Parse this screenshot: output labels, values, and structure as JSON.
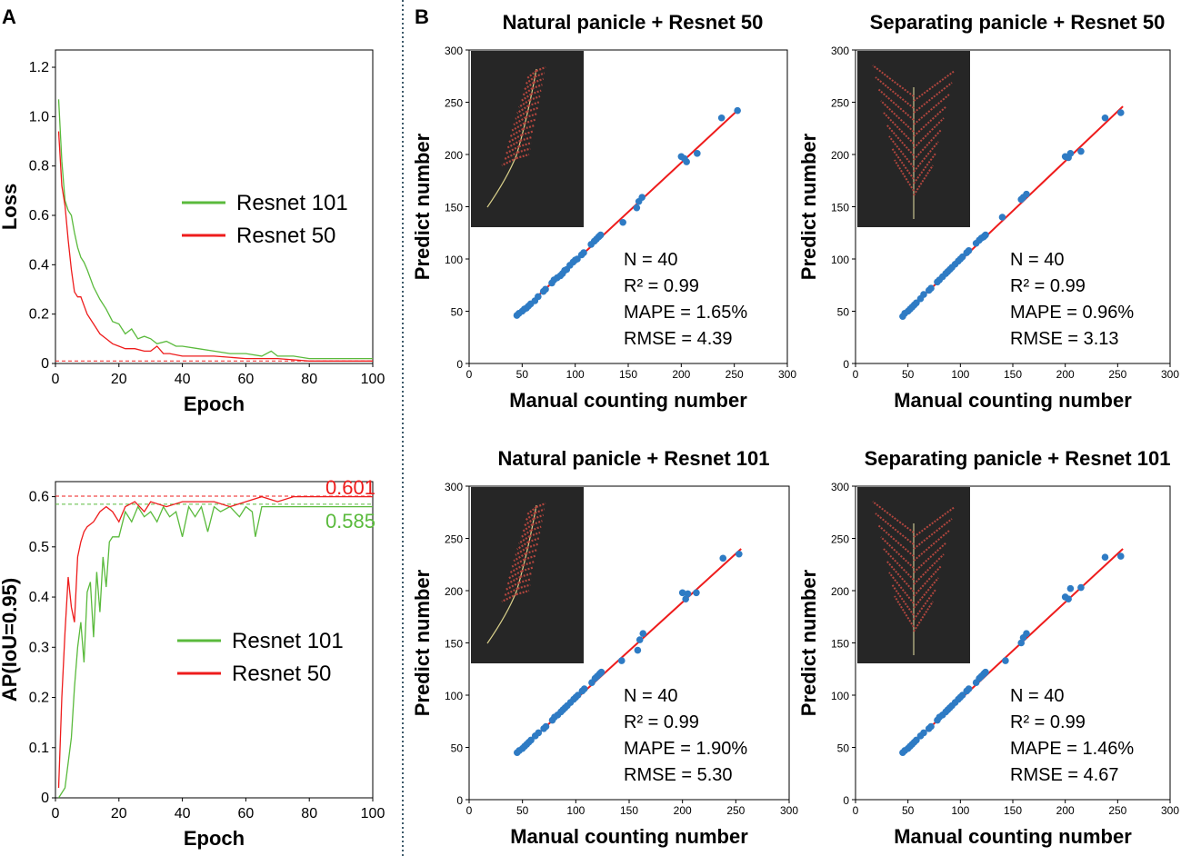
{
  "panels": {
    "A": "A",
    "B": "B"
  },
  "chart_data": [
    {
      "id": "loss",
      "type": "line",
      "title": "",
      "xlabel": "Epoch",
      "ylabel": "Loss",
      "xlim": [
        0,
        100
      ],
      "ylim": [
        0,
        1.27
      ],
      "xticks": [
        0,
        20,
        40,
        60,
        80,
        100
      ],
      "yticks": [
        0,
        0.2,
        0.4,
        0.6,
        0.8,
        1.0,
        1.2
      ],
      "ytick_labels": [
        "0",
        "0.2",
        "0.4",
        "0.6",
        "0.8",
        "1.0",
        "1.2"
      ],
      "legend": {
        "placement": "center-right",
        "entries": [
          {
            "name": "Resnet 101",
            "color": "#5aba3c"
          },
          {
            "name": "Resnet 50",
            "color": "#ee1c1c"
          }
        ]
      },
      "reference_lines": [
        {
          "y": 0.01,
          "color": "#ee1c1c",
          "style": "dashed"
        }
      ],
      "series": [
        {
          "name": "Resnet 101",
          "color": "#5aba3c",
          "x": [
            1,
            2,
            3,
            4,
            5,
            6,
            7,
            8,
            9,
            10,
            12,
            14,
            16,
            18,
            20,
            22,
            24,
            26,
            28,
            30,
            32,
            35,
            38,
            40,
            45,
            50,
            55,
            60,
            65,
            68,
            70,
            75,
            80,
            85,
            90,
            95,
            100
          ],
          "y": [
            1.07,
            0.82,
            0.66,
            0.62,
            0.6,
            0.53,
            0.47,
            0.43,
            0.41,
            0.38,
            0.31,
            0.26,
            0.22,
            0.17,
            0.16,
            0.12,
            0.14,
            0.1,
            0.11,
            0.1,
            0.08,
            0.09,
            0.07,
            0.07,
            0.06,
            0.05,
            0.04,
            0.04,
            0.03,
            0.05,
            0.03,
            0.03,
            0.02,
            0.02,
            0.02,
            0.02,
            0.02
          ]
        },
        {
          "name": "Resnet 50",
          "color": "#ee1c1c",
          "x": [
            1,
            2,
            3,
            4,
            5,
            6,
            7,
            8,
            10,
            12,
            14,
            16,
            18,
            20,
            22,
            25,
            28,
            30,
            32,
            34,
            36,
            40,
            45,
            50,
            60,
            70,
            80,
            90,
            100
          ],
          "y": [
            0.94,
            0.72,
            0.64,
            0.5,
            0.38,
            0.29,
            0.27,
            0.27,
            0.2,
            0.16,
            0.12,
            0.1,
            0.08,
            0.07,
            0.06,
            0.06,
            0.05,
            0.05,
            0.07,
            0.04,
            0.04,
            0.03,
            0.03,
            0.03,
            0.02,
            0.02,
            0.01,
            0.01,
            0.01
          ]
        }
      ]
    },
    {
      "id": "ap",
      "type": "line",
      "title": "",
      "xlabel": "Epoch",
      "ylabel": "AP(IoU=0.95)",
      "xlim": [
        0,
        100
      ],
      "ylim": [
        0,
        0.63
      ],
      "xticks": [
        0,
        20,
        40,
        60,
        80,
        100
      ],
      "yticks": [
        0,
        0.1,
        0.2,
        0.3,
        0.4,
        0.5,
        0.6
      ],
      "ytick_labels": [
        "0",
        "0.1",
        "0.2",
        "0.3",
        "0.4",
        "0.5",
        "0.6"
      ],
      "legend": {
        "placement": "lower-right",
        "entries": [
          {
            "name": "Resnet 101",
            "color": "#5aba3c"
          },
          {
            "name": "Resnet 50",
            "color": "#ee1c1c"
          }
        ]
      },
      "reference_lines": [
        {
          "y": 0.601,
          "color": "#ee1c1c",
          "style": "dashed",
          "label": "0.601"
        },
        {
          "y": 0.585,
          "color": "#5aba3c",
          "style": "dashed",
          "label": "0.585"
        }
      ],
      "series": [
        {
          "name": "Resnet 101",
          "color": "#5aba3c",
          "x": [
            1,
            3,
            5,
            6,
            7,
            8,
            9,
            10,
            11,
            12,
            13,
            14,
            15,
            16,
            17,
            18,
            20,
            22,
            24,
            26,
            28,
            30,
            32,
            34,
            36,
            38,
            40,
            42,
            44,
            46,
            48,
            50,
            52,
            55,
            58,
            60,
            62,
            63,
            65,
            70,
            75,
            80,
            85,
            90,
            95,
            100
          ],
          "y": [
            0.0,
            0.02,
            0.12,
            0.22,
            0.3,
            0.35,
            0.27,
            0.41,
            0.43,
            0.32,
            0.45,
            0.37,
            0.48,
            0.42,
            0.51,
            0.52,
            0.52,
            0.57,
            0.55,
            0.58,
            0.56,
            0.57,
            0.55,
            0.58,
            0.56,
            0.57,
            0.52,
            0.58,
            0.56,
            0.58,
            0.53,
            0.58,
            0.57,
            0.58,
            0.56,
            0.58,
            0.57,
            0.52,
            0.58,
            0.58,
            0.58,
            0.58,
            0.58,
            0.58,
            0.58,
            0.58
          ]
        },
        {
          "name": "Resnet 50",
          "color": "#ee1c1c",
          "x": [
            1,
            2,
            3,
            4,
            5,
            6,
            7,
            8,
            9,
            10,
            12,
            14,
            16,
            18,
            20,
            22,
            25,
            28,
            30,
            35,
            40,
            45,
            50,
            55,
            60,
            65,
            70,
            75,
            80,
            85,
            90,
            95,
            100
          ],
          "y": [
            0.02,
            0.2,
            0.33,
            0.44,
            0.38,
            0.35,
            0.48,
            0.51,
            0.53,
            0.54,
            0.55,
            0.57,
            0.58,
            0.57,
            0.55,
            0.58,
            0.59,
            0.57,
            0.59,
            0.58,
            0.59,
            0.59,
            0.59,
            0.58,
            0.59,
            0.6,
            0.59,
            0.6,
            0.6,
            0.6,
            0.6,
            0.6,
            0.6
          ]
        }
      ]
    },
    {
      "id": "scatter-natural-50",
      "type": "scatter",
      "title": "Natural panicle + Resnet 50",
      "xlabel": "Manual counting number",
      "ylabel": "Predict number",
      "xlim": [
        0,
        300
      ],
      "ylim": [
        0,
        300
      ],
      "xticks": [
        0,
        50,
        100,
        150,
        200,
        250,
        300
      ],
      "yticks": [
        0,
        50,
        100,
        150,
        200,
        250,
        300
      ],
      "inset_image": "natural panicle photo",
      "stats": {
        "n": "N = 40",
        "r2": "R² = 0.99",
        "mape": "MAPE = 1.65%",
        "rmse": "RMSE = 4.39"
      },
      "fit_line": {
        "x": [
          45,
          255
        ],
        "y": [
          46,
          244
        ],
        "color": "#ee1c1c"
      },
      "points": {
        "x": [
          45,
          47,
          50,
          52,
          54,
          56,
          58,
          62,
          65,
          70,
          72,
          78,
          80,
          83,
          86,
          88,
          90,
          92,
          95,
          98,
          100,
          102,
          106,
          108,
          115,
          118,
          120,
          122,
          123,
          124,
          145,
          158,
          160,
          163,
          200,
          203,
          205,
          215,
          238,
          253
        ],
        "y": [
          46,
          48,
          50,
          52,
          53,
          55,
          57,
          60,
          64,
          69,
          71,
          77,
          80,
          82,
          84,
          86,
          89,
          90,
          94,
          97,
          99,
          100,
          104,
          106,
          114,
          117,
          119,
          121,
          122,
          123,
          135,
          149,
          155,
          159,
          198,
          196,
          193,
          201,
          235,
          242
        ]
      },
      "marker_color": "#2e7bc4"
    },
    {
      "id": "scatter-separating-50",
      "type": "scatter",
      "title": "Separating panicle + Resnet 50",
      "xlabel": "Manual counting number",
      "ylabel": "Predict number",
      "xlim": [
        0,
        300
      ],
      "ylim": [
        0,
        300
      ],
      "xticks": [
        0,
        50,
        100,
        150,
        200,
        250,
        300
      ],
      "yticks": [
        0,
        50,
        100,
        150,
        200,
        250,
        300
      ],
      "inset_image": "separating panicle photo",
      "stats": {
        "n": "N = 40",
        "r2": "R² = 0.99",
        "mape": "MAPE = 0.96%",
        "rmse": "RMSE = 3.13"
      },
      "fit_line": {
        "x": [
          45,
          255
        ],
        "y": [
          46,
          246
        ],
        "color": "#ee1c1c"
      },
      "points": {
        "x": [
          45,
          47,
          50,
          52,
          54,
          56,
          58,
          62,
          65,
          70,
          72,
          78,
          80,
          83,
          86,
          88,
          90,
          92,
          95,
          98,
          100,
          102,
          106,
          108,
          115,
          118,
          120,
          122,
          123,
          124,
          140,
          158,
          160,
          163,
          200,
          203,
          205,
          215,
          238,
          253
        ],
        "y": [
          45,
          48,
          50,
          52,
          54,
          56,
          58,
          62,
          66,
          70,
          72,
          78,
          80,
          83,
          86,
          88,
          90,
          92,
          95,
          98,
          100,
          102,
          106,
          108,
          115,
          118,
          120,
          121,
          122,
          123,
          140,
          157,
          159,
          162,
          198,
          197,
          201,
          203,
          235,
          240
        ]
      },
      "marker_color": "#2e7bc4"
    },
    {
      "id": "scatter-natural-101",
      "type": "scatter",
      "title": "Natural panicle + Resnet 101",
      "xlabel": "Manual counting number",
      "ylabel": "Predict number",
      "xlim": [
        0,
        300
      ],
      "ylim": [
        0,
        300
      ],
      "xticks": [
        0,
        50,
        100,
        150,
        200,
        250,
        300
      ],
      "yticks": [
        0,
        50,
        100,
        150,
        200,
        250,
        300
      ],
      "inset_image": "natural panicle photo",
      "stats": {
        "n": "N = 40",
        "r2": "R² = 0.99",
        "mape": "MAPE = 1.90%",
        "rmse": "RMSE = 5.30"
      },
      "fit_line": {
        "x": [
          45,
          255
        ],
        "y": [
          45,
          240
        ],
        "color": "#ee1c1c"
      },
      "points": {
        "x": [
          45,
          47,
          50,
          52,
          54,
          56,
          58,
          62,
          65,
          70,
          72,
          78,
          80,
          83,
          86,
          88,
          90,
          92,
          95,
          98,
          100,
          102,
          106,
          108,
          115,
          118,
          120,
          122,
          123,
          124,
          143,
          158,
          160,
          163,
          200,
          203,
          205,
          213,
          238,
          253
        ],
        "y": [
          45,
          47,
          49,
          51,
          53,
          55,
          57,
          61,
          64,
          68,
          70,
          76,
          79,
          81,
          84,
          86,
          88,
          90,
          93,
          96,
          98,
          100,
          104,
          106,
          112,
          116,
          118,
          120,
          121,
          122,
          133,
          143,
          153,
          159,
          198,
          192,
          197,
          198,
          231,
          235
        ]
      },
      "marker_color": "#2e7bc4"
    },
    {
      "id": "scatter-separating-101",
      "type": "scatter",
      "title": "Separating panicle + Resnet 101",
      "xlabel": "Manual counting number",
      "ylabel": "Predict number",
      "xlim": [
        0,
        300
      ],
      "ylim": [
        0,
        300
      ],
      "xticks": [
        0,
        50,
        100,
        150,
        200,
        250,
        300
      ],
      "yticks": [
        0,
        50,
        100,
        150,
        200,
        250,
        300
      ],
      "inset_image": "separating panicle photo",
      "stats": {
        "n": "N = 40",
        "r2": "R² = 0.99",
        "mape": "MAPE = 1.46%",
        "rmse": "RMSE = 4.67"
      },
      "fit_line": {
        "x": [
          45,
          255
        ],
        "y": [
          45,
          240
        ],
        "color": "#ee1c1c"
      },
      "points": {
        "x": [
          45,
          47,
          50,
          52,
          54,
          56,
          58,
          62,
          65,
          70,
          72,
          78,
          80,
          83,
          86,
          88,
          90,
          92,
          95,
          98,
          100,
          102,
          106,
          108,
          115,
          118,
          120,
          122,
          123,
          124,
          143,
          158,
          160,
          163,
          200,
          203,
          205,
          215,
          238,
          253
        ],
        "y": [
          45,
          47,
          49,
          51,
          53,
          55,
          57,
          61,
          64,
          68,
          70,
          76,
          79,
          81,
          84,
          86,
          88,
          90,
          93,
          96,
          98,
          100,
          104,
          106,
          112,
          116,
          118,
          120,
          121,
          122,
          133,
          150,
          155,
          159,
          194,
          192,
          202,
          203,
          232,
          233
        ]
      },
      "marker_color": "#2e7bc4"
    }
  ]
}
